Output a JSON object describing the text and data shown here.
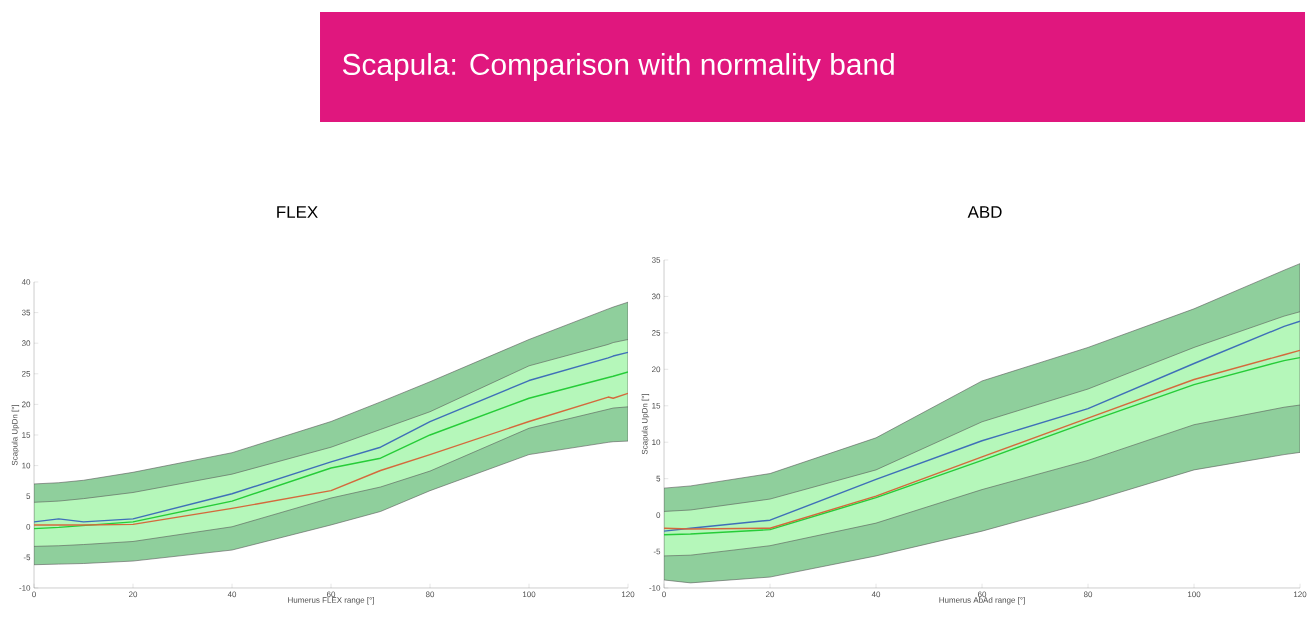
{
  "chart_data": [
    {
      "type": "line",
      "title": "FLEX",
      "annotations": [
        "Scapula: Comparison with normality band"
      ],
      "xlabel": "Humerus FLEX range [°]",
      "ylabel": "Scapula UpDn [°]",
      "x": [
        0,
        5,
        10,
        20,
        40,
        60,
        70,
        80,
        100,
        116,
        117,
        120
      ],
      "xlim": [
        0,
        120
      ],
      "xticks": [
        0,
        20,
        40,
        60,
        80,
        100,
        120
      ],
      "ylim": [
        -10,
        40
      ],
      "yticks": [
        -10,
        -5,
        0,
        5,
        10,
        15,
        20,
        25,
        30,
        35,
        40
      ],
      "grid": false,
      "marker": "none",
      "line_style": "solid",
      "series": [
        {
          "type": "area",
          "color": "#8fcf9c",
          "values": [
            null,
            null,
            null,
            null,
            null,
            null,
            null,
            null,
            null,
            null,
            null,
            null
          ],
          "lower": [
            -6.2,
            -6.1,
            -6.0,
            -5.6,
            -3.8,
            0.3,
            2.5,
            5.9,
            11.8,
            13.8,
            13.9,
            14.0
          ],
          "upper": [
            7.0,
            7.2,
            7.6,
            8.9,
            12.1,
            17.2,
            20.4,
            23.7,
            30.6,
            35.6,
            35.9,
            36.7
          ]
        },
        {
          "type": "area",
          "color": "#b5f7ba",
          "values": [
            null,
            null,
            null,
            null,
            null,
            null,
            null,
            null,
            null,
            null,
            null,
            null
          ],
          "lower": [
            -3.2,
            -3.1,
            -2.9,
            -2.4,
            0.0,
            4.7,
            6.5,
            9.1,
            16.1,
            19.2,
            19.4,
            19.6
          ],
          "upper": [
            4.0,
            4.2,
            4.6,
            5.6,
            8.6,
            13.0,
            15.9,
            18.8,
            26.3,
            29.8,
            30.1,
            30.6
          ]
        },
        {
          "type": "line",
          "color": "#3f6fb8",
          "values": [
            0.8,
            1.3,
            0.8,
            1.3,
            5.4,
            10.6,
            13.0,
            17.2,
            23.9,
            27.6,
            27.9,
            28.5
          ]
        },
        {
          "type": "line",
          "color": "#26cc38",
          "values": [
            -0.3,
            -0.1,
            0.2,
            0.8,
            4.2,
            9.6,
            11.2,
            15.0,
            21.0,
            24.4,
            24.6,
            25.3
          ]
        },
        {
          "type": "line",
          "color": "#d4693c",
          "values": [
            0.3,
            0.3,
            0.3,
            0.4,
            3.0,
            5.9,
            9.2,
            11.8,
            17.2,
            21.2,
            21.0,
            21.8
          ]
        }
      ]
    },
    {
      "type": "line",
      "title": "ABD",
      "xlabel": "Humerus AbAd range [°]",
      "ylabel": "Scapula UpDn [°]",
      "x": [
        0,
        5,
        20,
        40,
        60,
        80,
        100,
        117,
        120
      ],
      "xlim": [
        0,
        120
      ],
      "xticks": [
        0,
        20,
        40,
        60,
        80,
        100,
        120
      ],
      "ylim": [
        -10,
        35
      ],
      "yticks": [
        -10,
        -5,
        0,
        5,
        10,
        15,
        20,
        25,
        30,
        35
      ],
      "grid": false,
      "marker": "none",
      "line_style": "solid",
      "series": [
        {
          "type": "area",
          "color": "#8fcf9c",
          "values": [
            null,
            null,
            null,
            null,
            null,
            null,
            null,
            null,
            null
          ],
          "lower": [
            -8.9,
            -9.3,
            -8.5,
            -5.6,
            -2.2,
            1.8,
            6.2,
            8.3,
            8.6
          ],
          "upper": [
            3.7,
            4.0,
            5.7,
            10.6,
            18.4,
            23.0,
            28.3,
            33.6,
            34.5
          ]
        },
        {
          "type": "area",
          "color": "#b5f7ba",
          "values": [
            null,
            null,
            null,
            null,
            null,
            null,
            null,
            null,
            null
          ],
          "lower": [
            -5.6,
            -5.5,
            -4.2,
            -1.1,
            3.5,
            7.5,
            12.4,
            14.8,
            15.1
          ],
          "upper": [
            0.5,
            0.7,
            2.2,
            6.2,
            12.8,
            17.3,
            23.0,
            27.3,
            27.9
          ]
        },
        {
          "type": "line",
          "color": "#3f6fb8",
          "values": [
            -2.2,
            -1.8,
            -0.7,
            4.9,
            10.2,
            14.6,
            20.8,
            25.9,
            26.6
          ]
        },
        {
          "type": "line",
          "color": "#26cc38",
          "values": [
            -2.7,
            -2.6,
            -2.0,
            2.4,
            7.5,
            12.8,
            17.9,
            21.2,
            21.6
          ]
        },
        {
          "type": "line",
          "color": "#d4693c",
          "values": [
            -1.8,
            -1.9,
            -1.8,
            2.6,
            8.0,
            13.3,
            18.6,
            22.0,
            22.6
          ]
        }
      ]
    }
  ]
}
